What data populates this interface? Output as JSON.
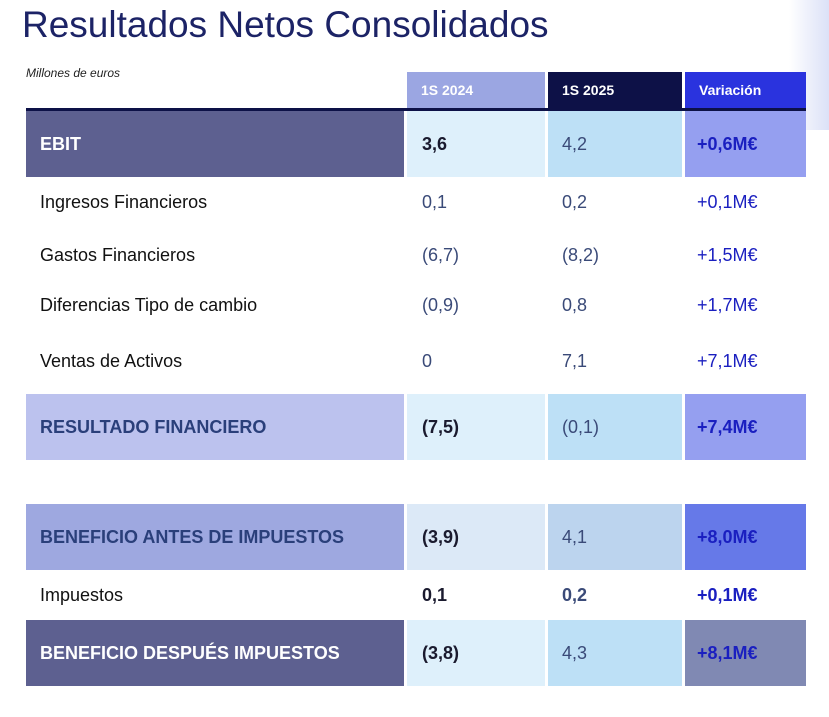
{
  "title": "Resultados Netos Consolidados",
  "units": "Millones de euros",
  "columns": [
    "1S 2024",
    "1S 2025",
    "Variación"
  ],
  "rows": [
    {
      "label": "EBIT",
      "v2024": "3,6",
      "v2025": "4,2",
      "var": "+0,6M€"
    },
    {
      "label": "Ingresos Financieros",
      "v2024": "0,1",
      "v2025": "0,2",
      "var": "+0,1M€"
    },
    {
      "label": "Gastos Financieros",
      "v2024": "(6,7)",
      "v2025": "(8,2)",
      "var": "+1,5M€"
    },
    {
      "label": "Diferencias Tipo de cambio",
      "v2024": "(0,9)",
      "v2025": "0,8",
      "var": "+1,7M€"
    },
    {
      "label": "Ventas de Activos",
      "v2024": "0",
      "v2025": "7,1",
      "var": "+7,1M€"
    },
    {
      "label": "RESULTADO FINANCIERO",
      "v2024": "(7,5)",
      "v2025": "(0,1)",
      "var": "+7,4M€"
    },
    {
      "label": "BENEFICIO ANTES DE IMPUESTOS",
      "v2024": "(3,9)",
      "v2025": "4,1",
      "var": "+8,0M€"
    },
    {
      "label": "Impuestos",
      "v2024": "0,1",
      "v2025": "0,2",
      "var": "+0,1M€"
    },
    {
      "label": "BENEFICIO DESPUÉS IMPUESTOS",
      "v2024": "(3,8)",
      "v2025": "4,3",
      "var": "+8,1M€"
    }
  ],
  "colors": {
    "title": "#1c2366",
    "header_2024": "#9ba6e2",
    "header_2025": "#0d1147",
    "header_variation": "#2a33de",
    "ebit_label": "#5d6090",
    "resultado_label": "#bcc2ee",
    "antes_label": "#9ea8e0",
    "despues_label": "#5d6090"
  }
}
